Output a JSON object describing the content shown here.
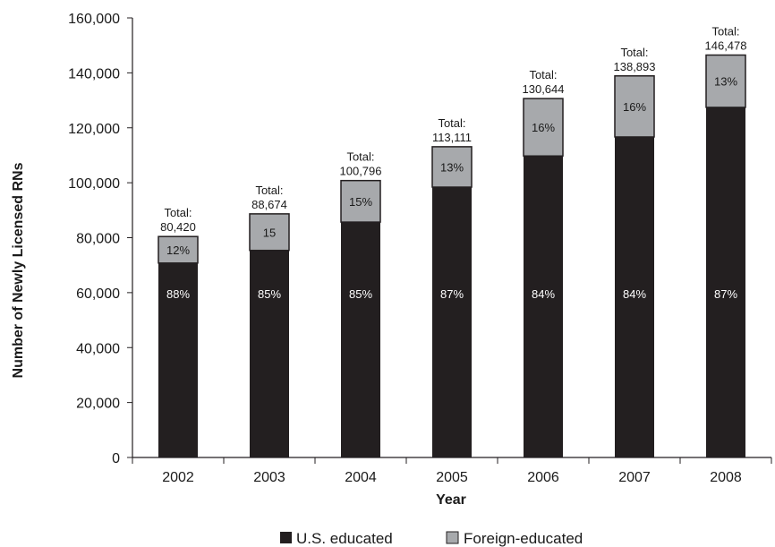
{
  "chart_data": {
    "type": "bar",
    "stacked": true,
    "categories": [
      "2002",
      "2003",
      "2004",
      "2005",
      "2006",
      "2007",
      "2008"
    ],
    "series": [
      {
        "name": "U.S. educated",
        "color": "#231f20",
        "values": [
          70770,
          75373,
          85677,
          98407,
          109741,
          116670,
          127436
        ],
        "labels": [
          "88%",
          "85%",
          "85%",
          "87%",
          "84%",
          "84%",
          "87%"
        ]
      },
      {
        "name": "Foreign-educated",
        "color": "#a7a9ac",
        "values": [
          9650,
          13301,
          15119,
          14704,
          20903,
          22223,
          19042
        ],
        "labels": [
          "12%",
          "15",
          "15%",
          "13%",
          "16%",
          "16%",
          "13%"
        ]
      }
    ],
    "totals": [
      [
        "Total:",
        "80,420"
      ],
      [
        "Total:",
        "88,674"
      ],
      [
        "Total:",
        "100,796"
      ],
      [
        "Total:",
        "113,111"
      ],
      [
        "Total:",
        "130,644"
      ],
      [
        "Total:",
        "138,893"
      ],
      [
        "Total:",
        "146,478"
      ]
    ],
    "xlabel": "Year",
    "ylabel": "Number of Newly Licensed RNs",
    "ylim": [
      0,
      160000
    ],
    "yticks": [
      0,
      20000,
      40000,
      60000,
      80000,
      100000,
      120000,
      140000,
      160000
    ],
    "ytick_labels": [
      "0",
      "20,000",
      "40,000",
      "60,000",
      "80,000",
      "100,000",
      "120,000",
      "140,000",
      "160,000"
    ],
    "grid": false,
    "legend_position": "bottom-center"
  }
}
